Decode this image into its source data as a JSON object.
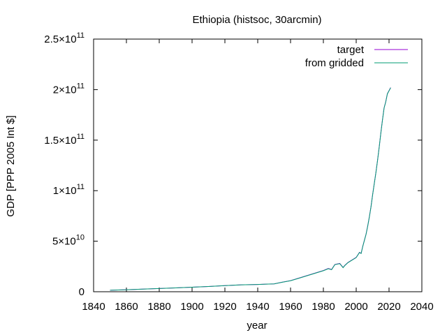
{
  "chart_data": {
    "type": "line",
    "title": "Ethiopia (histsoc, 30arcmin)",
    "xlabel": "year",
    "ylabel": "GDP [PPP 2005 Int $]",
    "xlim": [
      1840,
      2040
    ],
    "ylim": [
      0,
      250000000000.0
    ],
    "x_ticks": [
      1840,
      1860,
      1880,
      1900,
      1920,
      1940,
      1960,
      1980,
      2000,
      2020,
      2040
    ],
    "y_ticks": [
      {
        "value": 0,
        "mantissa": "0",
        "exp": ""
      },
      {
        "value": 50000000000.0,
        "mantissa": "5×10",
        "exp": "10"
      },
      {
        "value": 100000000000.0,
        "mantissa": "1×10",
        "exp": "11"
      },
      {
        "value": 150000000000.0,
        "mantissa": "1.5×10",
        "exp": "11"
      },
      {
        "value": 200000000000.0,
        "mantissa": "2×10",
        "exp": "11"
      },
      {
        "value": 250000000000.0,
        "mantissa": "2.5×10",
        "exp": "11"
      }
    ],
    "grid": false,
    "legend_position": "top-right",
    "x": [
      1850,
      1860,
      1870,
      1880,
      1890,
      1900,
      1910,
      1920,
      1930,
      1935,
      1940,
      1945,
      1950,
      1955,
      1960,
      1965,
      1970,
      1975,
      1980,
      1983,
      1985,
      1987,
      1990,
      1992,
      1993,
      1995,
      1998,
      2000,
      2002,
      2003,
      2004,
      2005,
      2006,
      2007,
      2008,
      2009,
      2010,
      2011,
      2012,
      2013,
      2014,
      2015,
      2016,
      2017,
      2018,
      2019,
      2020,
      2021
    ],
    "series": [
      {
        "name": "target",
        "color": "#9400d3",
        "values": [
          1500000000.0,
          2000000000.0,
          2600000000.0,
          3200000000.0,
          3800000000.0,
          4500000000.0,
          5200000000.0,
          6000000000.0,
          6800000000.0,
          7000000000.0,
          7200000000.0,
          7500000000.0,
          7800000000.0,
          9500000000.0,
          11000000000.0,
          13500000000.0,
          16000000000.0,
          18500000000.0,
          21000000000.0,
          23000000000.0,
          22000000000.0,
          27000000000.0,
          28000000000.0,
          24000000000.0,
          26000000000.0,
          29000000000.0,
          32000000000.0,
          34000000000.0,
          39000000000.0,
          38000000000.0,
          45000000000.0,
          51000000000.0,
          57000000000.0,
          65000000000.0,
          74000000000.0,
          84000000000.0,
          96000000000.0,
          107000000000.0,
          118000000000.0,
          130000000000.0,
          143000000000.0,
          157000000000.0,
          170000000000.0,
          182000000000.0,
          188000000000.0,
          196000000000.0,
          199000000000.0,
          202000000000.0
        ]
      },
      {
        "name": "from gridded",
        "color": "#009e73",
        "values": [
          1500000000.0,
          2000000000.0,
          2600000000.0,
          3200000000.0,
          3800000000.0,
          4500000000.0,
          5200000000.0,
          6000000000.0,
          6800000000.0,
          7000000000.0,
          7200000000.0,
          7500000000.0,
          7800000000.0,
          9400000000.0,
          10900000000.0,
          13300000000.0,
          15800000000.0,
          18300000000.0,
          20800000000.0,
          22800000000.0,
          21800000000.0,
          26800000000.0,
          27800000000.0,
          23800000000.0,
          25800000000.0,
          28800000000.0,
          31800000000.0,
          33800000000.0,
          38800000000.0,
          37800000000.0,
          44800000000.0,
          50800000000.0,
          56800000000.0,
          64800000000.0,
          73800000000.0,
          83800000000.0,
          95800000000.0,
          106800000000.0,
          117800000000.0,
          129800000000.0,
          142800000000.0,
          156800000000.0,
          169800000000.0,
          181800000000.0,
          187800000000.0,
          195800000000.0,
          198800000000.0,
          201800000000.0
        ]
      }
    ]
  }
}
